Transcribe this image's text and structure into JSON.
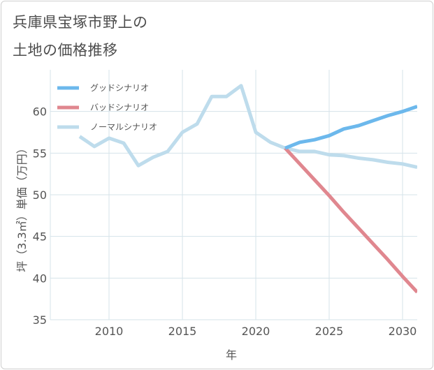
{
  "title": {
    "line1": "兵庫県宝塚市野上の",
    "line2": "土地の価格推移"
  },
  "colors": {
    "good": "#6cb8ec",
    "bad": "#e0878f",
    "normal": "#bedcec",
    "grid": "#d5e3ea",
    "frame": "#cfcfcf"
  },
  "chart_data": {
    "type": "line",
    "xlabel": "年",
    "ylabel": "坪（3.3㎡）単価（万円）",
    "xlim": [
      2006,
      2031
    ],
    "ylim": [
      35,
      65
    ],
    "x_ticks": [
      "2010",
      "2015",
      "2020",
      "2025",
      "2030"
    ],
    "y_ticks": [
      "35",
      "40",
      "45",
      "50",
      "55",
      "60"
    ],
    "grid": true,
    "legend_position": "top-left",
    "series": [
      {
        "name": "グッドシナリオ",
        "color_key": "good",
        "x": [
          2022,
          2023,
          2024,
          2025,
          2026,
          2027,
          2028,
          2029,
          2030,
          2031
        ],
        "y": [
          55.6,
          56.3,
          56.6,
          57.1,
          57.9,
          58.3,
          58.9,
          59.5,
          60.0,
          60.6
        ]
      },
      {
        "name": "バッドシナリオ",
        "color_key": "bad",
        "x": [
          2022,
          2023,
          2024,
          2025,
          2026,
          2027,
          2028,
          2029,
          2030,
          2031
        ],
        "y": [
          55.6,
          53.7,
          51.8,
          49.9,
          47.9,
          46.0,
          44.1,
          42.2,
          40.2,
          38.3
        ]
      },
      {
        "name": "ノーマルシナリオ",
        "color_key": "normal",
        "x": [
          2008,
          2009,
          2010,
          2011,
          2012,
          2013,
          2014,
          2015,
          2016,
          2017,
          2018,
          2019,
          2020,
          2021,
          2022,
          2023,
          2024,
          2025,
          2026,
          2027,
          2028,
          2029,
          2030,
          2031
        ],
        "y": [
          57.0,
          55.8,
          56.8,
          56.2,
          53.5,
          54.5,
          55.2,
          57.5,
          58.5,
          61.8,
          61.8,
          63.1,
          57.5,
          56.3,
          55.6,
          55.2,
          55.2,
          54.8,
          54.7,
          54.4,
          54.2,
          53.9,
          53.7,
          53.3
        ]
      }
    ]
  }
}
